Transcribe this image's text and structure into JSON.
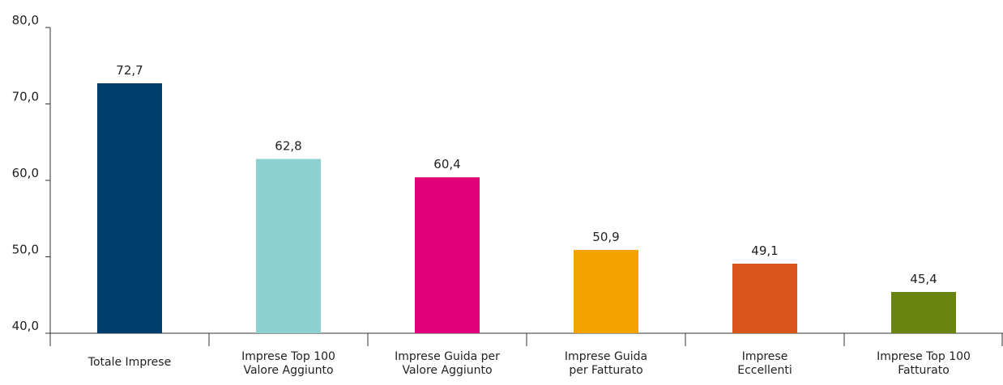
{
  "chart_data": {
    "type": "bar",
    "categories": [
      [
        "Totale Imprese"
      ],
      [
        "Imprese Top 100",
        "Valore Aggiunto"
      ],
      [
        "Imprese Guida per",
        "Valore Aggiunto"
      ],
      [
        "Imprese Guida",
        "per Fatturato"
      ],
      [
        "Imprese",
        "Eccellenti"
      ],
      [
        "Imprese Top 100",
        "Fatturato"
      ]
    ],
    "values": [
      72.7,
      62.8,
      60.4,
      50.9,
      49.1,
      45.4
    ],
    "value_labels": [
      "72,7",
      "62,8",
      "60,4",
      "50,9",
      "49,1",
      "45,4"
    ],
    "colors": [
      "#003e6e",
      "#8ecfcf",
      "#e2007a",
      "#f5a300",
      "#d9531a",
      "#6a8410"
    ],
    "ylim": [
      40,
      80
    ],
    "yticks": [
      40,
      50,
      60,
      70,
      80
    ],
    "ytick_labels": [
      "40,0",
      "50,0",
      "60,0",
      "70,0",
      "80,0"
    ],
    "grid": false,
    "legend": "none"
  }
}
